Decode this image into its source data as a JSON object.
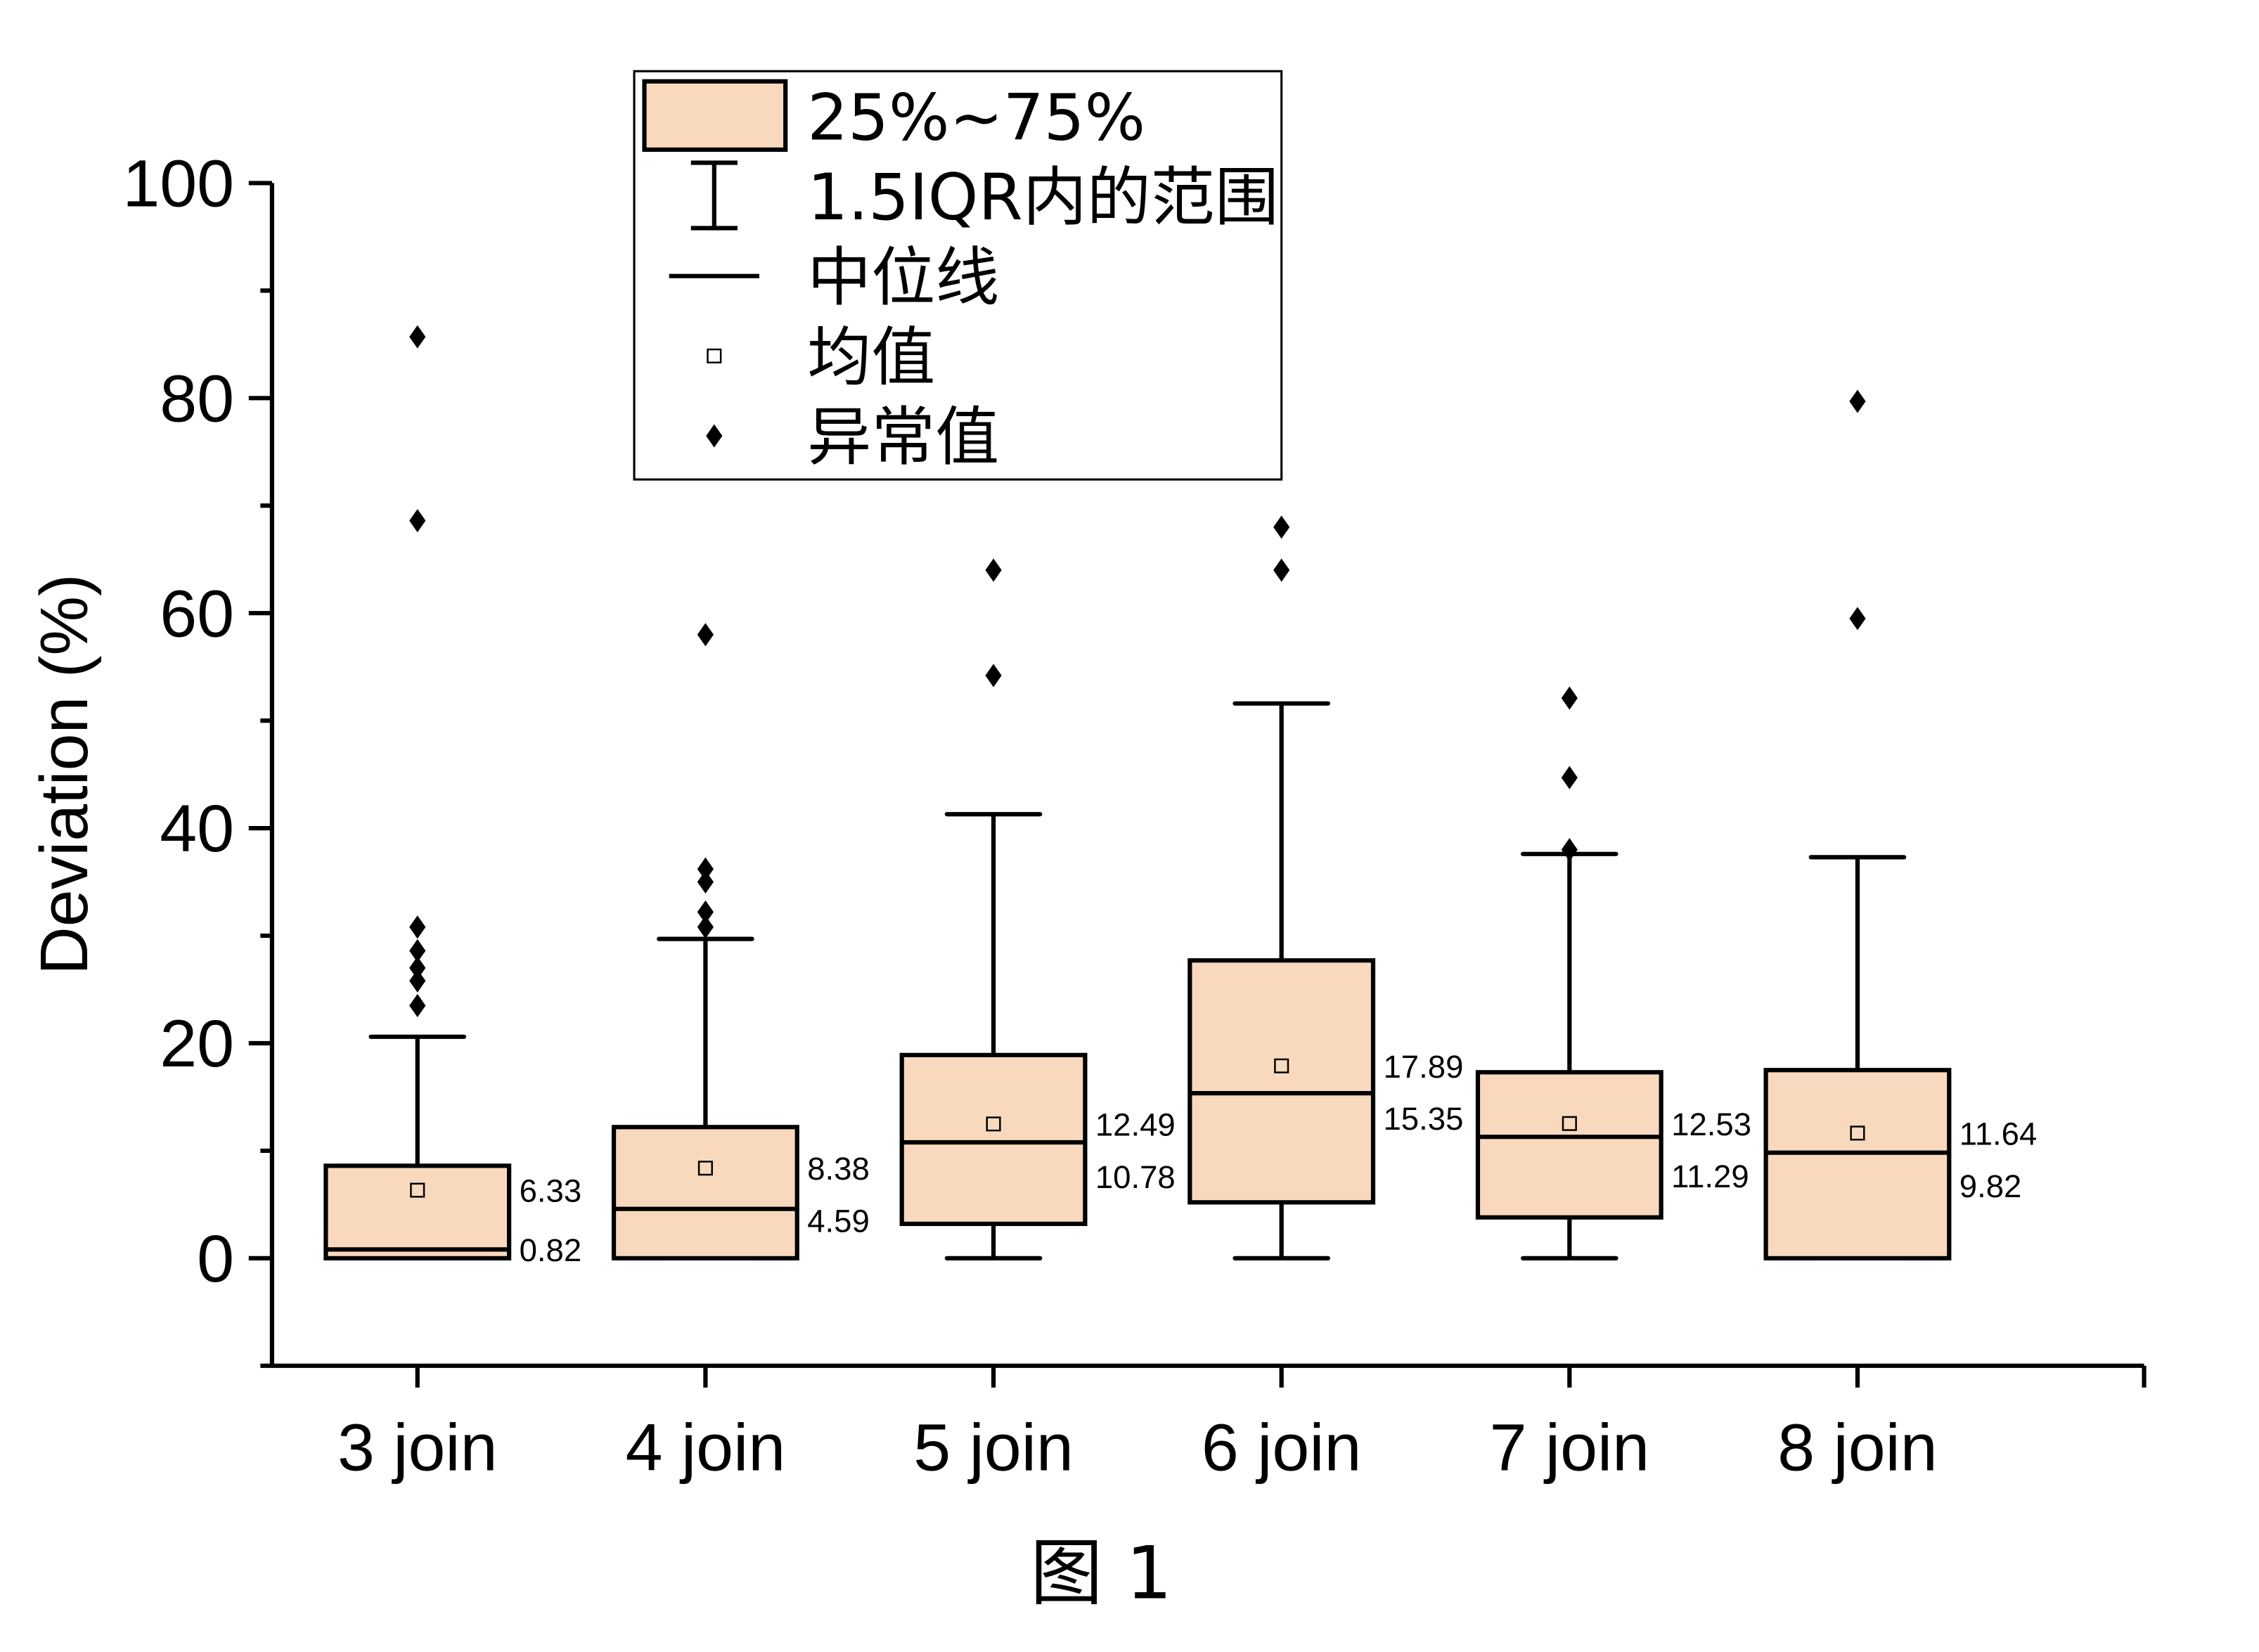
{
  "chart_data": {
    "type": "box",
    "title": "",
    "caption": "图 1",
    "xlabel": "",
    "ylabel": "Deviation (%)",
    "ylim": [
      -10,
      100
    ],
    "yticks": [
      0,
      20,
      40,
      60,
      80,
      100
    ],
    "grid": false,
    "legend_position": "top-center",
    "colors": {
      "box_fill": "#F9D9BD",
      "stroke": "#000000"
    },
    "legend": [
      {
        "symbol": "box",
        "label": "25%~75%"
      },
      {
        "symbol": "whisker",
        "label": "1.5IQR内的范围"
      },
      {
        "symbol": "line",
        "label": "中位线"
      },
      {
        "symbol": "open-square",
        "label": "均值"
      },
      {
        "symbol": "diamond",
        "label": "异常值"
      }
    ],
    "categories": [
      "3 join",
      "4 join",
      "5 join",
      "6 join",
      "7 join",
      "8 join"
    ],
    "boxes": [
      {
        "q1": 0,
        "median": 0.82,
        "q3": 8.6,
        "mean": 6.33,
        "whisker_low": 0,
        "whisker_high": 20.6,
        "outliers": [
          23.5,
          25.8,
          27.0,
          28.6,
          30.8,
          68.6,
          85.7
        ],
        "median_label": "0.82",
        "mean_label": "6.33"
      },
      {
        "q1": 0,
        "median": 4.59,
        "q3": 12.2,
        "mean": 8.38,
        "whisker_low": 0,
        "whisker_high": 29.7,
        "outliers": [
          30.8,
          32.2,
          35.0,
          36.2,
          58.0
        ],
        "median_label": "4.59",
        "mean_label": "8.38"
      },
      {
        "q1": 3.2,
        "median": 10.78,
        "q3": 18.9,
        "mean": 12.49,
        "whisker_low": 0,
        "whisker_high": 41.3,
        "outliers": [
          54.2,
          64.0
        ],
        "median_label": "10.78",
        "mean_label": "12.49"
      },
      {
        "q1": 5.2,
        "median": 15.35,
        "q3": 27.7,
        "mean": 17.89,
        "whisker_low": 0,
        "whisker_high": 51.6,
        "outliers": [
          64.0,
          68.0
        ],
        "median_label": "15.35",
        "mean_label": "17.89"
      },
      {
        "q1": 3.8,
        "median": 11.29,
        "q3": 17.3,
        "mean": 12.53,
        "whisker_low": 0,
        "whisker_high": 37.6,
        "outliers": [
          38.0,
          44.7,
          52.1
        ],
        "median_label": "11.29",
        "mean_label": "12.53"
      },
      {
        "q1": 0,
        "median": 9.82,
        "q3": 17.5,
        "mean": 11.64,
        "whisker_low": 0,
        "whisker_high": 37.3,
        "outliers": [
          59.5,
          79.7
        ],
        "median_label": "9.82",
        "mean_label": "11.64"
      }
    ]
  }
}
